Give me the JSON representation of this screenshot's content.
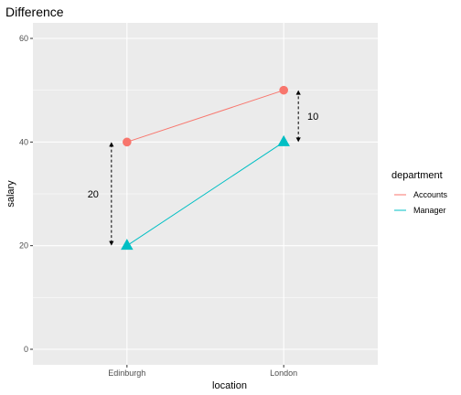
{
  "chart_data": {
    "type": "line",
    "title": "Difference",
    "xlabel": "location",
    "ylabel": "salary",
    "categories": [
      "Edinburgh",
      "London"
    ],
    "ylim": [
      -3,
      63
    ],
    "yticks": [
      0,
      20,
      40,
      60
    ],
    "grid": true,
    "legend": {
      "title": "department",
      "placement": "right"
    },
    "series": [
      {
        "name": "Accounts",
        "values": [
          40,
          50
        ],
        "color": "#F8766D",
        "marker": "circle"
      },
      {
        "name": "Manager",
        "values": [
          20,
          40
        ],
        "color": "#00BFC4",
        "marker": "triangle"
      }
    ],
    "annotations": [
      {
        "text": "20",
        "category": "Edinburgh",
        "from": 20,
        "to": 40
      },
      {
        "text": "10",
        "category": "London",
        "from": 40,
        "to": 50
      }
    ]
  }
}
